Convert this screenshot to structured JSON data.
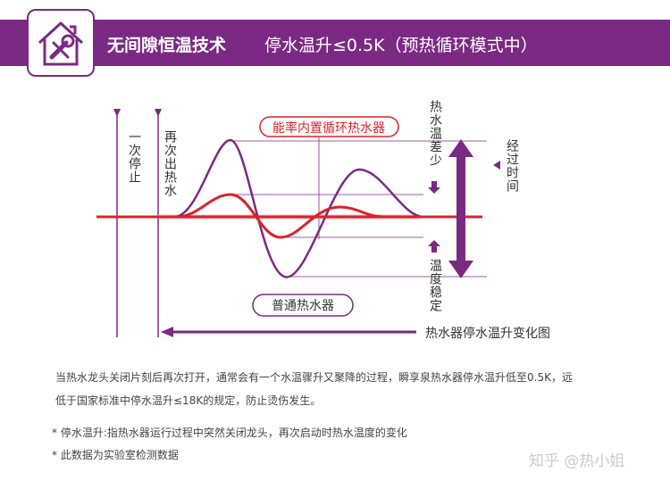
{
  "header": {
    "title": "无间隙恒温技术",
    "subtitle": "停水温升≤0.5K（预热循环模式中）",
    "logo_icon": "house-wrench-icon"
  },
  "diagram": {
    "label_first_stop": "一次停止",
    "label_restart": "再次出热水",
    "label_red_curve": "能率内置循环热水器",
    "label_purple_curve": "普通热水器",
    "label_temp_diff_small": "热水温差少",
    "label_temp_stable": "温度稳定",
    "label_time_passed": "经过时间",
    "label_chart_caption": "热水器停水温升变化图",
    "colors": {
      "purple": "#7a2a82",
      "red": "#d9232a",
      "pink": "#f3b8c6"
    }
  },
  "notes": {
    "paragraph_line1": "当热水龙头关闭片刻后再次打开，通常会有一个水温骤升又聚降的过程，瞬享泉热水器停水温升低至0.5K，远",
    "paragraph_line2": "低于国家标准中停水温升≤18K的规定，防止烫伤发生。",
    "footnote1": "* 停水温升:指热水器运行过程中突然关闭龙头，再次启动时热水温度的变化",
    "footnote2": "* 此数据为实验室检测数据"
  },
  "watermark": "知乎 @热小姐"
}
